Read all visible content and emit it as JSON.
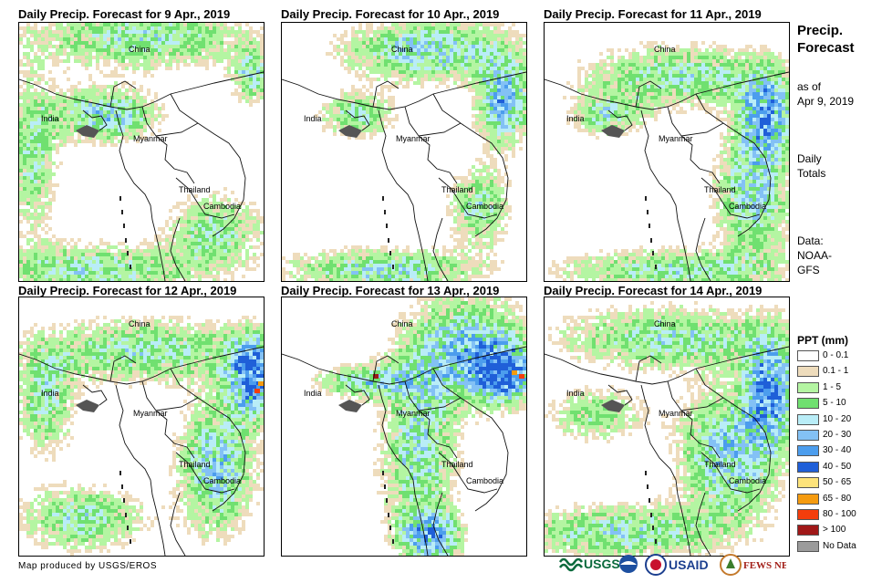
{
  "panels": [
    {
      "title": "Daily Precip. Forecast for 9 Apr., 2019"
    },
    {
      "title": "Daily Precip. Forecast for 10 Apr., 2019"
    },
    {
      "title": "Daily Precip. Forecast for 11 Apr., 2019"
    },
    {
      "title": "Daily Precip. Forecast for 12 Apr., 2019"
    },
    {
      "title": "Daily Precip. Forecast for 13 Apr., 2019"
    },
    {
      "title": "Daily Precip. Forecast for 14 Apr., 2019"
    }
  ],
  "map_labels": {
    "china": "China",
    "india": "India",
    "myanmar": "Myanmar",
    "thailand": "Thailand",
    "cambodia": "Cambodia"
  },
  "sidebar": {
    "title_line1": "Precip.",
    "title_line2": "Forecast",
    "asof_line1": "as of",
    "asof_line2": "Apr 9, 2019",
    "totals_line1": "Daily",
    "totals_line2": "Totals",
    "data_line1": "Data:",
    "data_line2": "NOAA-",
    "data_line3": "GFS"
  },
  "legend": {
    "title": "PPT (mm)",
    "items": [
      {
        "label": "0 - 0.1",
        "color": "#ffffff"
      },
      {
        "label": "0.1 - 1",
        "color": "#eedcbc"
      },
      {
        "label": "1 - 5",
        "color": "#b4f5a2"
      },
      {
        "label": "5 - 10",
        "color": "#70e070"
      },
      {
        "label": "10 - 20",
        "color": "#b9edf7"
      },
      {
        "label": "20 - 30",
        "color": "#83c1f5"
      },
      {
        "label": "30 - 40",
        "color": "#4c9ded"
      },
      {
        "label": "40 - 50",
        "color": "#1f5fd8"
      },
      {
        "label": "50 - 65",
        "color": "#fde37b"
      },
      {
        "label": "65 - 80",
        "color": "#f59b0f"
      },
      {
        "label": "80 - 100",
        "color": "#f43d0c"
      },
      {
        "label": "> 100",
        "color": "#a01818"
      },
      {
        "label": "No Data",
        "color": "#9b9b9b"
      }
    ]
  },
  "footer": "Map produced by USGS/EROS",
  "logos": {
    "usgs": "USGS",
    "usaid": "USAID",
    "fewsnet": "FEWS NET"
  }
}
